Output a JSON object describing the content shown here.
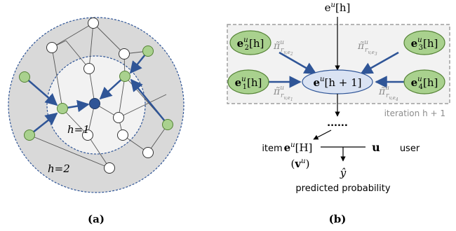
{
  "colors": {
    "outer_fill": "#d9d9d9",
    "inner_fill": "#f2f2f2",
    "ring_stroke": "#2f5597",
    "edge_gray": "#555555",
    "arrow_blue": "#2f5597",
    "green_node": "#a9d18e",
    "green_stroke": "#548235",
    "blue_node": "#2f5597",
    "center_fill": "#dae3f3",
    "dash_box": "#8c8c8c",
    "weight_gray": "#8c8c8c"
  },
  "panel_a": {
    "label": "(a)",
    "inner_ring_label": "h=1",
    "outer_ring_label": "h=2"
  },
  "panel_b": {
    "label": "(b)",
    "input": {
      "base": "e",
      "sup": "u",
      "tail": "[h]"
    },
    "center_node": {
      "base": "e",
      "sup": "u",
      "tail": "[h + 1]"
    },
    "neighbor_nodes": [
      {
        "base": "e",
        "sub": "2",
        "sup": "u",
        "tail": "[h]"
      },
      {
        "base": "e",
        "sub": "3",
        "sup": "u",
        "tail": "[h]"
      },
      {
        "base": "e",
        "sub": "1",
        "sup": "u",
        "tail": "[h]"
      },
      {
        "base": "e",
        "sub": "4",
        "sup": "u",
        "tail": "[h]"
      }
    ],
    "weights": [
      {
        "base": "π̃",
        "sup": "u",
        "sub": "r",
        "subsub": "v,e",
        "subsubsub": "2"
      },
      {
        "base": "π̃",
        "sup": "u",
        "sub": "r",
        "subsub": "v,e",
        "subsubsub": "3"
      },
      {
        "base": "π̃",
        "sup": "u",
        "sub": "r",
        "subsub": "v,e",
        "subsubsub": "1"
      },
      {
        "base": "π̃",
        "sup": "u",
        "sub": "r",
        "subsub": "v,e",
        "subsubsub": "4"
      }
    ],
    "iteration_label": "iteration h + 1",
    "ellipsis": "......",
    "item_label": "item",
    "item_repr": {
      "base": "e",
      "sup": "u",
      "tail": "[H]"
    },
    "item_vec": {
      "open": "(",
      "base": "v",
      "sup": "u",
      "close": ")"
    },
    "user_repr": "u",
    "user_label": "user",
    "prediction": "ŷ",
    "prediction_label": "predicted probability"
  }
}
